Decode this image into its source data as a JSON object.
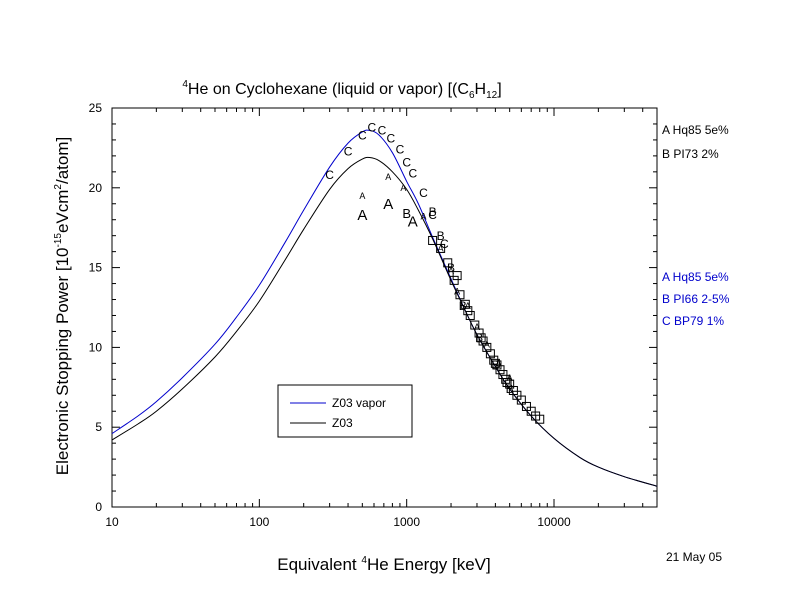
{
  "chart_data": {
    "type": "line",
    "title_main": "He on Cyclohexane (liquid or vapor) [(C",
    "title_iso": "4",
    "title_sub1": "6",
    "title_mid": "H",
    "title_sub2": "12",
    "title_end": "]",
    "xlabel_pre": "Equivalent ",
    "xlabel_iso": "4",
    "xlabel_post": "He Energy [keV]",
    "ylabel": "Electronic Stopping Power [10",
    "ylabel_exp1": "-15",
    "ylabel_mid": "eVcm",
    "ylabel_exp2": "2",
    "ylabel_end": "/atom]",
    "x_scale": "log",
    "xlim": [
      10,
      50000
    ],
    "ylim": [
      0,
      25
    ],
    "x_ticks": [
      {
        "v": 10,
        "label": "10"
      },
      {
        "v": 100,
        "label": "100"
      },
      {
        "v": 1000,
        "label": "1000"
      },
      {
        "v": 10000,
        "label": "10000"
      }
    ],
    "y_ticks": [
      {
        "v": 0,
        "label": "0"
      },
      {
        "v": 5,
        "label": "5"
      },
      {
        "v": 10,
        "label": "10"
      },
      {
        "v": 15,
        "label": "15"
      },
      {
        "v": 20,
        "label": "20"
      },
      {
        "v": 25,
        "label": "25"
      }
    ],
    "series": [
      {
        "name": "Z03 vapor",
        "color": "#0000cc",
        "x": [
          10,
          15,
          20,
          30,
          50,
          70,
          100,
          150,
          200,
          300,
          400,
          500,
          560,
          650,
          800,
          1000,
          1200,
          1500,
          2000,
          2500,
          3000,
          4000,
          5000,
          7000,
          10000,
          15000,
          20000,
          30000,
          50000
        ],
        "y": [
          4.6,
          5.7,
          6.6,
          8.1,
          10.2,
          11.9,
          13.9,
          16.6,
          18.6,
          21.3,
          22.8,
          23.5,
          23.6,
          23.3,
          22.2,
          20.4,
          19.0,
          16.9,
          14.3,
          12.3,
          10.8,
          8.8,
          7.4,
          5.7,
          4.3,
          3.1,
          2.5,
          1.9,
          1.3
        ]
      },
      {
        "name": "Z03",
        "color": "#000000",
        "x": [
          10,
          15,
          20,
          30,
          50,
          70,
          100,
          150,
          200,
          300,
          400,
          500,
          560,
          650,
          800,
          1000,
          1200,
          1500,
          2000,
          2500,
          3000,
          4000,
          5000,
          7000,
          10000,
          15000,
          20000,
          30000,
          50000
        ],
        "y": [
          4.2,
          5.2,
          6.0,
          7.4,
          9.4,
          11.0,
          12.9,
          15.5,
          17.4,
          19.9,
          21.2,
          21.8,
          21.9,
          21.7,
          21.0,
          19.9,
          18.6,
          16.8,
          14.2,
          12.3,
          10.8,
          8.8,
          7.4,
          5.7,
          4.3,
          3.1,
          2.5,
          1.9,
          1.3
        ]
      }
    ],
    "points": [
      {
        "set": "A",
        "x": 500,
        "y": 18.3,
        "size": 15
      },
      {
        "set": "A",
        "x": 750,
        "y": 19.0,
        "size": 15
      },
      {
        "set": "A",
        "x": 1100,
        "y": 17.9,
        "size": 15
      },
      {
        "set": "A",
        "x": 500,
        "y": 19.5,
        "size": 9
      },
      {
        "set": "A",
        "x": 750,
        "y": 20.7,
        "size": 9
      },
      {
        "set": "A",
        "x": 950,
        "y": 20.0,
        "size": 9
      },
      {
        "set": "A",
        "x": 1300,
        "y": 18.2,
        "size": 9
      },
      {
        "set": "A",
        "x": 1700,
        "y": 16.2,
        "size": 9
      },
      {
        "set": "A",
        "x": 2000,
        "y": 14.8,
        "size": 9
      },
      {
        "set": "A",
        "x": 2200,
        "y": 13.5,
        "size": 9
      },
      {
        "set": "A",
        "x": 2600,
        "y": 12.6,
        "size": 9
      },
      {
        "set": "A",
        "x": 3000,
        "y": 11.3,
        "size": 9
      },
      {
        "set": "A",
        "x": 3500,
        "y": 10.2,
        "size": 9
      },
      {
        "set": "A",
        "x": 4200,
        "y": 9.0,
        "size": 9
      },
      {
        "set": "A",
        "x": 5000,
        "y": 8.1,
        "size": 9
      },
      {
        "set": "B",
        "x": 1000,
        "y": 18.4,
        "size": 13
      },
      {
        "set": "B",
        "x": 1500,
        "y": 18.5,
        "size": 12
      },
      {
        "set": "B",
        "x": 1700,
        "y": 17.0,
        "size": 12
      },
      {
        "set": "B",
        "x": 2000,
        "y": 15.0,
        "size": 12
      },
      {
        "set": "B",
        "x": 2400,
        "y": 12.6,
        "size": 12
      },
      {
        "set": "B",
        "x": 3100,
        "y": 10.6,
        "size": 12
      },
      {
        "set": "B",
        "x": 4000,
        "y": 8.9,
        "size": 12
      },
      {
        "set": "B",
        "x": 5000,
        "y": 7.4,
        "size": 12
      },
      {
        "set": "C",
        "x": 300,
        "y": 20.8,
        "size": 12
      },
      {
        "set": "C",
        "x": 400,
        "y": 22.3,
        "size": 12
      },
      {
        "set": "C",
        "x": 500,
        "y": 23.3,
        "size": 12
      },
      {
        "set": "C",
        "x": 580,
        "y": 23.8,
        "size": 12
      },
      {
        "set": "C",
        "x": 680,
        "y": 23.6,
        "size": 12
      },
      {
        "set": "C",
        "x": 780,
        "y": 23.1,
        "size": 12
      },
      {
        "set": "C",
        "x": 900,
        "y": 22.4,
        "size": 12
      },
      {
        "set": "C",
        "x": 1000,
        "y": 21.6,
        "size": 12
      },
      {
        "set": "C",
        "x": 1100,
        "y": 20.9,
        "size": 12
      },
      {
        "set": "C",
        "x": 1300,
        "y": 19.7,
        "size": 12
      },
      {
        "set": "C",
        "x": 1500,
        "y": 18.3,
        "size": 12
      },
      {
        "set": "C",
        "x": 1800,
        "y": 16.5,
        "size": 12
      }
    ],
    "squares": [
      [
        1500,
        16.7
      ],
      [
        1700,
        16.2
      ],
      [
        1900,
        15.3
      ],
      [
        2100,
        14.2
      ],
      [
        2300,
        13.3
      ],
      [
        2500,
        12.7
      ],
      [
        2700,
        12.0
      ],
      [
        2900,
        11.4
      ],
      [
        3100,
        10.9
      ],
      [
        3300,
        10.4
      ],
      [
        3500,
        10.0
      ],
      [
        3700,
        9.6
      ],
      [
        3900,
        9.2
      ],
      [
        4100,
        8.9
      ],
      [
        4300,
        8.6
      ],
      [
        4500,
        8.3
      ],
      [
        4700,
        8.0
      ],
      [
        5000,
        7.7
      ],
      [
        5300,
        7.3
      ],
      [
        5600,
        7.0
      ],
      [
        6000,
        6.7
      ],
      [
        6500,
        6.3
      ],
      [
        7000,
        6.0
      ],
      [
        7500,
        5.7
      ],
      [
        8000,
        5.5
      ],
      [
        2200,
        14.5
      ],
      [
        2600,
        12.3
      ],
      [
        3200,
        10.6
      ],
      [
        4000,
        9.0
      ],
      [
        4800,
        7.8
      ]
    ],
    "legend": [
      {
        "label": "Z03 vapor",
        "color": "#0000cc"
      },
      {
        "label": "Z03",
        "color": "#000000"
      }
    ],
    "refs_black": [
      {
        "text": "A Hq85   5e%"
      },
      {
        "text": "B PI73   2%"
      }
    ],
    "refs_blue": [
      {
        "text": "A Hq85    5e%"
      },
      {
        "text": "B PI66    2-5%"
      },
      {
        "text": "C BP79    1%"
      }
    ],
    "date": "21 May 05",
    "colors": {
      "vapor": "#0000cc",
      "solid": "#000000"
    }
  }
}
